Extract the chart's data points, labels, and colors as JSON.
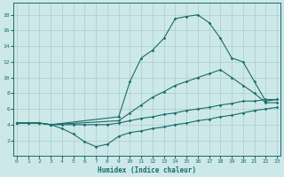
{
  "xlabel": "Humidex (Indice chaleur)",
  "bg_color": "#cce8e8",
  "grid_color": "#aacccc",
  "line_color": "#1a6b6b",
  "curves": {
    "curve_dip": {
      "x": [
        0,
        1,
        2,
        3,
        4,
        5,
        6,
        7,
        8,
        9,
        10,
        11,
        12,
        13,
        14,
        15,
        16,
        17,
        18,
        19,
        20,
        21,
        22,
        23
      ],
      "y": [
        4.2,
        4.2,
        4.2,
        4.0,
        3.5,
        2.8,
        1.8,
        1.2,
        1.5,
        2.5,
        3.0,
        3.2,
        3.5,
        3.7,
        4.0,
        4.2,
        4.5,
        4.7,
        5.0,
        5.2,
        5.5,
        5.8,
        6.0,
        6.2
      ]
    },
    "curve_low": {
      "x": [
        0,
        1,
        2,
        3,
        4,
        5,
        6,
        7,
        8,
        9,
        10,
        11,
        12,
        13,
        14,
        15,
        16,
        17,
        18,
        19,
        20,
        21,
        22,
        23
      ],
      "y": [
        4.2,
        4.2,
        4.2,
        4.0,
        4.0,
        4.0,
        4.0,
        4.0,
        4.0,
        4.2,
        4.5,
        4.8,
        5.0,
        5.3,
        5.5,
        5.8,
        6.0,
        6.2,
        6.5,
        6.7,
        7.0,
        7.0,
        7.2,
        7.2
      ]
    },
    "curve_mid": {
      "x": [
        0,
        1,
        2,
        3,
        9,
        10,
        11,
        12,
        13,
        14,
        15,
        16,
        17,
        18,
        19,
        20,
        21,
        22,
        23
      ],
      "y": [
        4.2,
        4.2,
        4.2,
        4.0,
        4.5,
        5.5,
        6.5,
        7.5,
        8.2,
        9.0,
        9.5,
        10.0,
        10.5,
        11.0,
        10.0,
        9.0,
        8.0,
        6.8,
        6.8
      ]
    },
    "curve_peak": {
      "x": [
        0,
        1,
        2,
        3,
        9,
        10,
        11,
        12,
        13,
        14,
        15,
        16,
        17,
        18,
        19,
        20,
        21,
        22,
        23
      ],
      "y": [
        4.2,
        4.2,
        4.2,
        4.0,
        5.0,
        9.5,
        12.5,
        13.5,
        15.0,
        17.5,
        17.8,
        18.0,
        17.0,
        15.0,
        12.5,
        12.0,
        9.5,
        7.0,
        7.2
      ]
    }
  },
  "xlim": [
    -0.3,
    23.3
  ],
  "ylim": [
    0,
    19.5
  ],
  "yticks": [
    2,
    4,
    6,
    8,
    10,
    12,
    14,
    16,
    18
  ],
  "xticks": [
    0,
    1,
    2,
    3,
    4,
    5,
    6,
    7,
    8,
    9,
    10,
    11,
    12,
    13,
    14,
    15,
    16,
    17,
    18,
    19,
    20,
    21,
    22,
    23
  ]
}
